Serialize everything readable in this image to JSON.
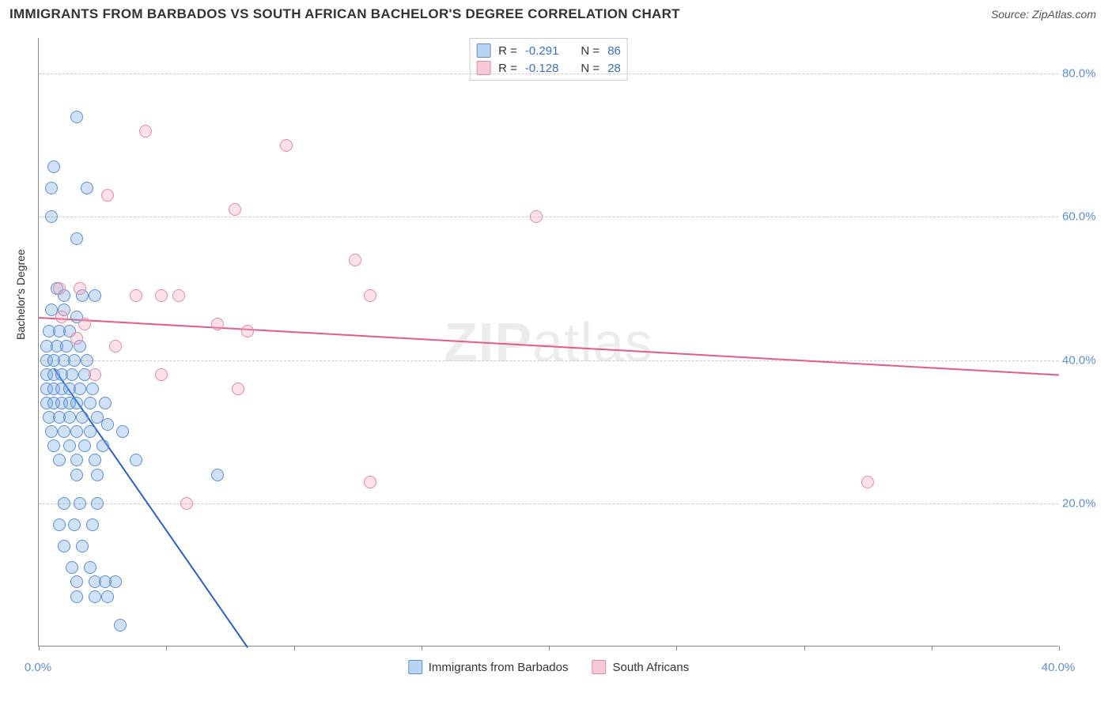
{
  "header": {
    "title": "IMMIGRANTS FROM BARBADOS VS SOUTH AFRICAN BACHELOR'S DEGREE CORRELATION CHART",
    "source_label": "Source:",
    "source_name": "ZipAtlas.com"
  },
  "watermark": {
    "prefix": "ZIP",
    "suffix": "atlas"
  },
  "chart": {
    "type": "scatter",
    "y_axis_label": "Bachelor's Degree",
    "xlim": [
      0,
      40
    ],
    "ylim": [
      0,
      85
    ],
    "x_ticks": [
      0,
      5,
      10,
      15,
      20,
      25,
      30,
      35,
      40
    ],
    "x_tick_labels": {
      "0": "0.0%",
      "40": "40.0%"
    },
    "y_ticks": [
      20,
      40,
      60,
      80
    ],
    "y_tick_labels": {
      "20": "20.0%",
      "40": "40.0%",
      "60": "60.0%",
      "80": "80.0%"
    },
    "grid_color": "#cccccc",
    "axis_color": "#888888",
    "background_color": "#ffffff",
    "tick_label_color": "#5b8fd6",
    "tick_label_fontsize": 15,
    "axis_label_fontsize": 14,
    "point_radius": 8,
    "point_stroke_width": 1.5,
    "series": [
      {
        "name": "Immigrants from Barbados",
        "fill_color": "rgba(120,170,230,0.35)",
        "stroke_color": "#5b8fd6",
        "swatch_fill": "#b8d4f0",
        "swatch_stroke": "#5b8fd6",
        "R": "-0.291",
        "N": "86",
        "trend": {
          "x1": 0.6,
          "y1": 39,
          "x2": 8.2,
          "y2": 0,
          "color": "#2a5fc9",
          "width": 2
        },
        "points": [
          [
            1.5,
            74
          ],
          [
            0.6,
            67
          ],
          [
            0.5,
            64
          ],
          [
            1.9,
            64
          ],
          [
            0.5,
            60
          ],
          [
            1.5,
            57
          ],
          [
            0.7,
            50
          ],
          [
            1.0,
            49
          ],
          [
            1.7,
            49
          ],
          [
            2.2,
            49
          ],
          [
            0.5,
            47
          ],
          [
            1.0,
            47
          ],
          [
            1.5,
            46
          ],
          [
            0.4,
            44
          ],
          [
            0.8,
            44
          ],
          [
            1.2,
            44
          ],
          [
            0.3,
            42
          ],
          [
            0.7,
            42
          ],
          [
            1.1,
            42
          ],
          [
            1.6,
            42
          ],
          [
            0.3,
            40
          ],
          [
            0.6,
            40
          ],
          [
            1.0,
            40
          ],
          [
            1.4,
            40
          ],
          [
            1.9,
            40
          ],
          [
            0.3,
            38
          ],
          [
            0.6,
            38
          ],
          [
            0.9,
            38
          ],
          [
            1.3,
            38
          ],
          [
            1.8,
            38
          ],
          [
            0.3,
            36
          ],
          [
            0.6,
            36
          ],
          [
            0.9,
            36
          ],
          [
            1.2,
            36
          ],
          [
            1.6,
            36
          ],
          [
            2.1,
            36
          ],
          [
            0.3,
            34
          ],
          [
            0.6,
            34
          ],
          [
            0.9,
            34
          ],
          [
            1.2,
            34
          ],
          [
            1.5,
            34
          ],
          [
            2.0,
            34
          ],
          [
            2.6,
            34
          ],
          [
            0.4,
            32
          ],
          [
            0.8,
            32
          ],
          [
            1.2,
            32
          ],
          [
            1.7,
            32
          ],
          [
            2.3,
            32
          ],
          [
            0.5,
            30
          ],
          [
            1.0,
            30
          ],
          [
            1.5,
            30
          ],
          [
            2.0,
            30
          ],
          [
            2.7,
            31
          ],
          [
            3.3,
            30
          ],
          [
            0.6,
            28
          ],
          [
            1.2,
            28
          ],
          [
            1.8,
            28
          ],
          [
            2.5,
            28
          ],
          [
            0.8,
            26
          ],
          [
            1.5,
            26
          ],
          [
            2.2,
            26
          ],
          [
            3.8,
            26
          ],
          [
            1.5,
            24
          ],
          [
            2.3,
            24
          ],
          [
            7.0,
            24
          ],
          [
            1.0,
            20
          ],
          [
            1.6,
            20
          ],
          [
            2.3,
            20
          ],
          [
            0.8,
            17
          ],
          [
            1.4,
            17
          ],
          [
            2.1,
            17
          ],
          [
            1.0,
            14
          ],
          [
            1.7,
            14
          ],
          [
            1.3,
            11
          ],
          [
            2.0,
            11
          ],
          [
            1.5,
            9
          ],
          [
            2.2,
            9
          ],
          [
            2.6,
            9
          ],
          [
            3.0,
            9
          ],
          [
            1.5,
            7
          ],
          [
            2.2,
            7
          ],
          [
            2.7,
            7
          ],
          [
            3.2,
            3
          ]
        ]
      },
      {
        "name": "South Africans",
        "fill_color": "rgba(245,170,190,0.35)",
        "stroke_color": "#e48aa4",
        "swatch_fill": "#f7c9d6",
        "swatch_stroke": "#e48aa4",
        "R": "-0.128",
        "N": "28",
        "trend": {
          "x1": 0,
          "y1": 46,
          "x2": 40,
          "y2": 38,
          "color": "#e65a8a",
          "width": 2
        },
        "points": [
          [
            4.2,
            72
          ],
          [
            9.7,
            70
          ],
          [
            2.7,
            63
          ],
          [
            7.7,
            61
          ],
          [
            19.5,
            60
          ],
          [
            12.4,
            54
          ],
          [
            0.8,
            50
          ],
          [
            1.6,
            50
          ],
          [
            3.8,
            49
          ],
          [
            4.8,
            49
          ],
          [
            5.5,
            49
          ],
          [
            13.0,
            49
          ],
          [
            0.9,
            46
          ],
          [
            1.8,
            45
          ],
          [
            7.0,
            45
          ],
          [
            8.2,
            44
          ],
          [
            1.5,
            43
          ],
          [
            3.0,
            42
          ],
          [
            2.2,
            38
          ],
          [
            4.8,
            38
          ],
          [
            7.8,
            36
          ],
          [
            5.8,
            20
          ],
          [
            13.0,
            23
          ],
          [
            32.5,
            23
          ]
        ]
      }
    ],
    "stats_legend": {
      "r_label": "R =",
      "n_label": "N ="
    },
    "bottom_legend_labels": [
      "Immigrants from Barbados",
      "South Africans"
    ]
  }
}
